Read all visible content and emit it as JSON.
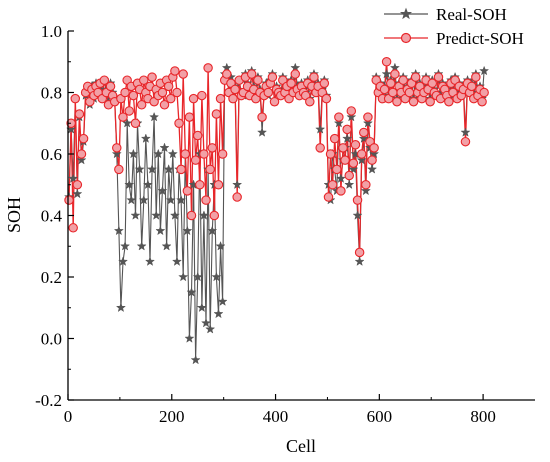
{
  "chart_data": {
    "type": "line",
    "xlabel": "Cell",
    "ylabel": "SOH",
    "xlim": [
      0,
      900
    ],
    "ylim": [
      -0.2,
      1.0
    ],
    "xticks": [
      0,
      200,
      400,
      600,
      800
    ],
    "yticks": [
      -0.2,
      0.0,
      0.2,
      0.4,
      0.6,
      0.8,
      1.0
    ],
    "xtick_labels": [
      "0",
      "200",
      "400",
      "600",
      "800"
    ],
    "ytick_labels": [
      "-0.2",
      "0.0",
      "0.2",
      "0.4",
      "0.6",
      "0.8",
      "1.0"
    ],
    "grid": false,
    "legend_position": "top-right",
    "colors": {
      "real": "#555555",
      "predict": "#e8262a",
      "predict_fill": "#f2a0a6"
    },
    "series": [
      {
        "name": "Real-SOH",
        "marker": "star",
        "x": [
          2,
          6,
          10,
          14,
          18,
          22,
          26,
          30,
          34,
          38,
          42,
          46,
          50,
          54,
          58,
          62,
          66,
          70,
          74,
          78,
          82,
          86,
          90,
          94,
          98,
          102,
          106,
          110,
          114,
          118,
          122,
          126,
          130,
          134,
          138,
          142,
          146,
          150,
          154,
          158,
          162,
          166,
          170,
          174,
          178,
          182,
          186,
          190,
          194,
          198,
          202,
          206,
          210,
          214,
          218,
          222,
          226,
          230,
          234,
          238,
          242,
          246,
          250,
          254,
          258,
          262,
          266,
          270,
          274,
          278,
          282,
          286,
          290,
          294,
          298,
          302,
          306,
          310,
          314,
          318,
          322,
          326,
          330,
          334,
          338,
          342,
          346,
          350,
          354,
          358,
          362,
          366,
          370,
          374,
          378,
          382,
          386,
          390,
          394,
          398,
          402,
          406,
          410,
          414,
          418,
          422,
          426,
          430,
          434,
          438,
          442,
          446,
          450,
          454,
          458,
          462,
          466,
          470,
          474,
          478,
          482,
          486,
          490,
          494,
          498,
          502,
          506,
          510,
          514,
          518,
          522,
          526,
          530,
          534,
          538,
          542,
          546,
          550,
          554,
          558,
          562,
          566,
          570,
          574,
          578,
          582,
          586,
          590,
          594,
          598,
          602,
          606,
          610,
          614,
          618,
          622,
          626,
          630,
          634,
          638,
          642,
          646,
          650,
          654,
          658,
          662,
          666,
          670,
          674,
          678,
          682,
          686,
          690,
          694,
          698,
          702,
          706,
          710,
          714,
          718,
          722,
          726,
          730,
          734,
          738,
          742,
          746,
          750,
          754,
          758,
          762,
          766,
          770,
          774,
          778,
          782,
          786,
          790,
          794,
          798,
          802
        ],
        "y": [
          0.46,
          0.68,
          0.52,
          0.78,
          0.47,
          0.72,
          0.58,
          0.64,
          0.79,
          0.81,
          0.76,
          0.82,
          0.78,
          0.83,
          0.8,
          0.82,
          0.79,
          0.84,
          0.81,
          0.77,
          0.83,
          0.8,
          0.78,
          0.6,
          0.35,
          0.1,
          0.25,
          0.3,
          0.7,
          0.5,
          0.45,
          0.6,
          0.4,
          0.7,
          0.55,
          0.3,
          0.45,
          0.65,
          0.5,
          0.25,
          0.55,
          0.72,
          0.4,
          0.6,
          0.35,
          0.48,
          0.62,
          0.3,
          0.55,
          0.45,
          0.6,
          0.4,
          0.25,
          0.55,
          0.45,
          0.2,
          0.6,
          0.35,
          0.0,
          0.15,
          0.5,
          -0.07,
          0.2,
          0.6,
          0.1,
          0.4,
          0.05,
          0.55,
          0.03,
          0.35,
          0.5,
          0.2,
          0.08,
          0.3,
          0.12,
          0.86,
          0.88,
          0.8,
          0.85,
          0.78,
          0.82,
          0.5,
          0.84,
          0.8,
          0.79,
          0.86,
          0.83,
          0.8,
          0.87,
          0.82,
          0.78,
          0.85,
          0.81,
          0.67,
          0.8,
          0.83,
          0.79,
          0.84,
          0.86,
          0.77,
          0.82,
          0.8,
          0.79,
          0.85,
          0.81,
          0.83,
          0.78,
          0.84,
          0.8,
          0.88,
          0.82,
          0.79,
          0.83,
          0.81,
          0.8,
          0.84,
          0.78,
          0.82,
          0.86,
          0.8,
          0.83,
          0.68,
          0.81,
          0.84,
          0.79,
          0.5,
          0.45,
          0.6,
          0.55,
          0.48,
          0.7,
          0.52,
          0.58,
          0.62,
          0.65,
          0.5,
          0.72,
          0.55,
          0.6,
          0.4,
          0.25,
          0.58,
          0.65,
          0.48,
          0.7,
          0.62,
          0.55,
          0.6,
          0.85,
          0.8,
          0.83,
          0.78,
          0.82,
          0.86,
          0.79,
          0.84,
          0.8,
          0.88,
          0.78,
          0.83,
          0.81,
          0.85,
          0.79,
          0.82,
          0.8,
          0.84,
          0.78,
          0.86,
          0.81,
          0.83,
          0.79,
          0.8,
          0.85,
          0.82,
          0.78,
          0.84,
          0.81,
          0.8,
          0.86,
          0.79,
          0.83,
          0.82,
          0.8,
          0.78,
          0.84,
          0.81,
          0.85,
          0.79,
          0.83,
          0.8,
          0.82,
          0.67,
          0.84,
          0.81,
          0.83,
          0.79,
          0.86,
          0.8,
          0.82,
          0.78,
          0.87
        ]
      },
      {
        "name": "Predict-SOH",
        "marker": "circle",
        "x": [
          2,
          6,
          10,
          14,
          18,
          22,
          26,
          30,
          34,
          38,
          42,
          46,
          50,
          54,
          58,
          62,
          66,
          70,
          74,
          78,
          82,
          86,
          90,
          94,
          98,
          102,
          106,
          110,
          114,
          118,
          122,
          126,
          130,
          134,
          138,
          142,
          146,
          150,
          154,
          158,
          162,
          166,
          170,
          174,
          178,
          182,
          186,
          190,
          194,
          198,
          202,
          206,
          210,
          214,
          218,
          222,
          226,
          230,
          234,
          238,
          242,
          246,
          250,
          254,
          258,
          262,
          266,
          270,
          274,
          278,
          282,
          286,
          290,
          294,
          298,
          302,
          306,
          310,
          314,
          318,
          322,
          326,
          330,
          334,
          338,
          342,
          346,
          350,
          354,
          358,
          362,
          366,
          370,
          374,
          378,
          382,
          386,
          390,
          394,
          398,
          402,
          406,
          410,
          414,
          418,
          422,
          426,
          430,
          434,
          438,
          442,
          446,
          450,
          454,
          458,
          462,
          466,
          470,
          474,
          478,
          482,
          486,
          490,
          494,
          498,
          502,
          506,
          510,
          514,
          518,
          522,
          526,
          530,
          534,
          538,
          542,
          546,
          550,
          554,
          558,
          562,
          566,
          570,
          574,
          578,
          582,
          586,
          590,
          594,
          598,
          602,
          606,
          610,
          614,
          618,
          622,
          626,
          630,
          634,
          638,
          642,
          646,
          650,
          654,
          658,
          662,
          666,
          670,
          674,
          678,
          682,
          686,
          690,
          694,
          698,
          702,
          706,
          710,
          714,
          718,
          722,
          726,
          730,
          734,
          738,
          742,
          746,
          750,
          754,
          758,
          762,
          766,
          770,
          774,
          778,
          782,
          786,
          790,
          794,
          798,
          802
        ],
        "y": [
          0.45,
          0.7,
          0.36,
          0.78,
          0.5,
          0.73,
          0.6,
          0.65,
          0.8,
          0.82,
          0.77,
          0.81,
          0.79,
          0.82,
          0.8,
          0.83,
          0.78,
          0.84,
          0.8,
          0.76,
          0.82,
          0.79,
          0.77,
          0.62,
          0.55,
          0.78,
          0.72,
          0.8,
          0.84,
          0.74,
          0.82,
          0.79,
          0.7,
          0.83,
          0.81,
          0.76,
          0.84,
          0.8,
          0.78,
          0.82,
          0.85,
          0.77,
          0.81,
          0.79,
          0.83,
          0.8,
          0.76,
          0.84,
          0.82,
          0.78,
          0.85,
          0.87,
          0.8,
          0.7,
          0.55,
          0.86,
          0.6,
          0.48,
          0.72,
          0.4,
          0.78,
          0.58,
          0.66,
          0.5,
          0.79,
          0.6,
          0.45,
          0.88,
          0.55,
          0.62,
          0.4,
          0.73,
          0.5,
          0.78,
          0.6,
          0.84,
          0.86,
          0.8,
          0.83,
          0.78,
          0.81,
          0.46,
          0.84,
          0.79,
          0.8,
          0.85,
          0.82,
          0.79,
          0.86,
          0.81,
          0.78,
          0.84,
          0.8,
          0.72,
          0.79,
          0.82,
          0.8,
          0.83,
          0.85,
          0.77,
          0.81,
          0.8,
          0.79,
          0.84,
          0.8,
          0.82,
          0.78,
          0.83,
          0.8,
          0.86,
          0.81,
          0.79,
          0.82,
          0.8,
          0.79,
          0.83,
          0.77,
          0.82,
          0.85,
          0.8,
          0.82,
          0.62,
          0.8,
          0.83,
          0.78,
          0.46,
          0.6,
          0.5,
          0.65,
          0.55,
          0.72,
          0.48,
          0.62,
          0.58,
          0.68,
          0.53,
          0.74,
          0.57,
          0.63,
          0.45,
          0.28,
          0.6,
          0.67,
          0.5,
          0.72,
          0.64,
          0.58,
          0.62,
          0.84,
          0.8,
          0.82,
          0.78,
          0.81,
          0.9,
          0.78,
          0.83,
          0.8,
          0.86,
          0.77,
          0.82,
          0.8,
          0.84,
          0.78,
          0.81,
          0.8,
          0.83,
          0.77,
          0.85,
          0.8,
          0.82,
          0.78,
          0.8,
          0.84,
          0.81,
          0.77,
          0.83,
          0.8,
          0.79,
          0.85,
          0.78,
          0.82,
          0.81,
          0.79,
          0.77,
          0.83,
          0.8,
          0.84,
          0.78,
          0.82,
          0.79,
          0.81,
          0.64,
          0.83,
          0.8,
          0.82,
          0.78,
          0.85,
          0.79,
          0.81,
          0.77,
          0.8
        ]
      }
    ]
  }
}
